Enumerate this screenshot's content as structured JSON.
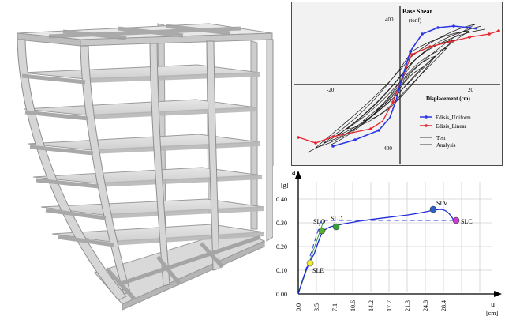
{
  "colors": {
    "frame": "#c8c8c8",
    "frame_dark": "#8a8a8a",
    "series_uniform": "#2a35e6",
    "series_linear": "#e6262f",
    "test": "#1a1a1a",
    "curve": "#1f2bd8",
    "point_sle": "#f2ee2a",
    "point_slo": "#55b030",
    "point_sld": "#3aa03a",
    "point_slv": "#2a62c9",
    "point_slc": "#c93dc9"
  },
  "hysteresis": {
    "ylabel_line1": "Base Shear",
    "ylabel_line2": "(tonf)",
    "xlabel": "Displacement (cm)",
    "xticks": [
      "-20",
      "20"
    ],
    "yticks": [
      "400",
      "-400"
    ],
    "legend": [
      "Edisis_Uniform",
      "Edisis_Linear",
      "Test",
      "Analysis"
    ]
  },
  "pushover": {
    "ylabel": "a",
    "yunit": "[g]",
    "xlabel": "u",
    "xunit": "[cm]",
    "yticks": [
      "0.00",
      "0.10",
      "0.20",
      "0.30",
      "0.40"
    ],
    "xticks": [
      "0.0",
      "3.5",
      "7.1",
      "10.6",
      "14.2",
      "17.7",
      "21.3",
      "24.8",
      "28.4"
    ]
  },
  "chart_data": [
    {
      "type": "line",
      "ylabel": "Base Shear (tonf)",
      "xlabel": "Displacement (cm)",
      "series": [
        {
          "name": "Edisis_Uniform",
          "x": [
            -27,
            -12,
            -6,
            -2,
            0,
            2,
            6,
            12,
            18,
            24
          ],
          "y": [
            -420,
            -380,
            -300,
            -150,
            0,
            180,
            390,
            455,
            460,
            455
          ]
        },
        {
          "name": "Edisis_Linear",
          "x": [
            -34,
            -27,
            -12,
            -6,
            -2,
            0,
            2,
            6,
            12,
            20,
            28,
            34
          ],
          "y": [
            -330,
            -370,
            -330,
            -280,
            -140,
            0,
            160,
            330,
            390,
            420,
            445,
            470
          ]
        }
      ]
    },
    {
      "type": "line",
      "ylabel": "a [g]",
      "xlabel": "u [cm]",
      "xlim": [
        0,
        32
      ],
      "ylim": [
        0,
        0.42
      ],
      "points": [
        {
          "label": "SLE",
          "x": 1.7,
          "y": 0.13
        },
        {
          "label": "SLO",
          "x": 4.5,
          "y": 0.265
        },
        {
          "label": "SLD",
          "x": 6.7,
          "y": 0.275
        },
        {
          "label": "SLV",
          "x": 25.0,
          "y": 0.35
        },
        {
          "label": "SLC",
          "x": 29.5,
          "y": 0.305
        }
      ],
      "series": [
        {
          "x": [
            0,
            1.7,
            3.5,
            4.5,
            6.7,
            10,
            17.7,
            25.0,
            29.5
          ],
          "y": [
            0,
            0.13,
            0.235,
            0.265,
            0.275,
            0.29,
            0.315,
            0.35,
            0.305
          ]
        },
        {
          "x": [
            0,
            4.4,
            29.5
          ],
          "y": [
            0,
            0.31,
            0.31
          ]
        }
      ]
    }
  ]
}
